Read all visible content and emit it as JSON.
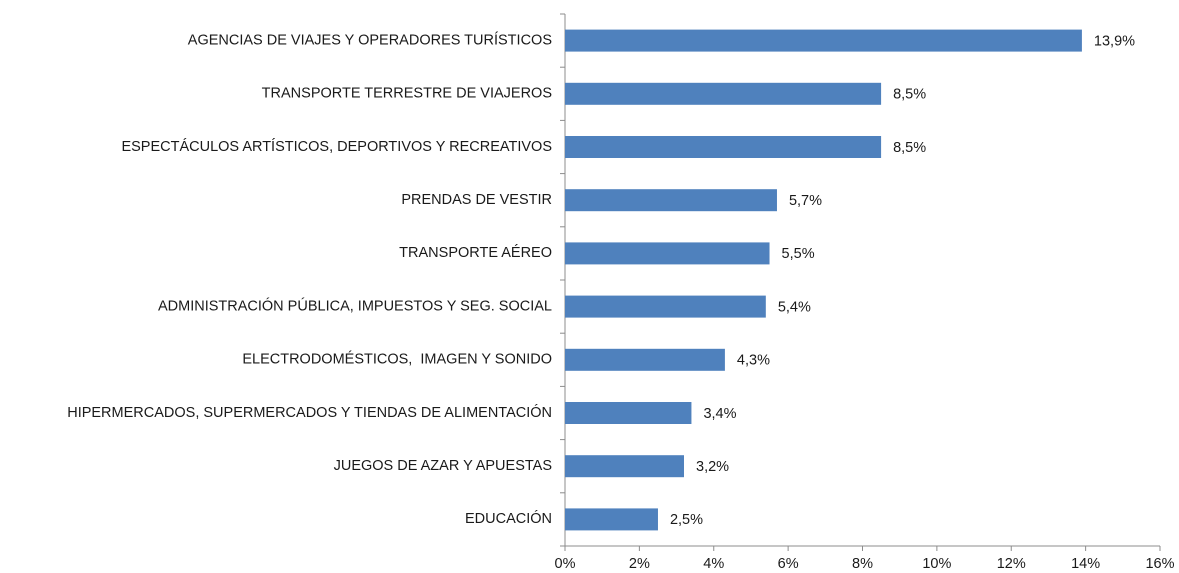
{
  "chart_data": {
    "type": "bar",
    "orientation": "horizontal",
    "categories": [
      "AGENCIAS DE VIAJES Y OPERADORES TURÍSTICOS",
      "TRANSPORTE TERRESTRE DE VIAJEROS",
      "ESPECTÁCULOS ARTÍSTICOS, DEPORTIVOS Y RECREATIVOS",
      "PRENDAS DE VESTIR",
      "TRANSPORTE AÉREO",
      "ADMINISTRACIÓN PÚBLICA, IMPUESTOS Y SEG. SOCIAL",
      "ELECTRODOMÉSTICOS,  IMAGEN Y SONIDO",
      "HIPERMERCADOS, SUPERMERCADOS Y TIENDAS DE ALIMENTACIÓN",
      "JUEGOS DE AZAR Y APUESTAS",
      "EDUCACIÓN"
    ],
    "values": [
      13.9,
      8.5,
      8.5,
      5.7,
      5.5,
      5.4,
      4.3,
      3.4,
      3.2,
      2.5
    ],
    "value_labels": [
      "13,9%",
      "8,5%",
      "8,5%",
      "5,7%",
      "5,5%",
      "5,4%",
      "4,3%",
      "3,4%",
      "3,2%",
      "2,5%"
    ],
    "color": "#4f81bd",
    "xlim": [
      0,
      16
    ],
    "xticks": [
      {
        "value": 0,
        "label": "0%"
      },
      {
        "value": 2,
        "label": "2%"
      },
      {
        "value": 4,
        "label": "4%"
      },
      {
        "value": 6,
        "label": "6%"
      },
      {
        "value": 8,
        "label": "8%"
      },
      {
        "value": 10,
        "label": "10%"
      },
      {
        "value": 12,
        "label": "12%"
      },
      {
        "value": 14,
        "label": "14%"
      },
      {
        "value": 16,
        "label": "16%"
      }
    ],
    "grid": false
  }
}
